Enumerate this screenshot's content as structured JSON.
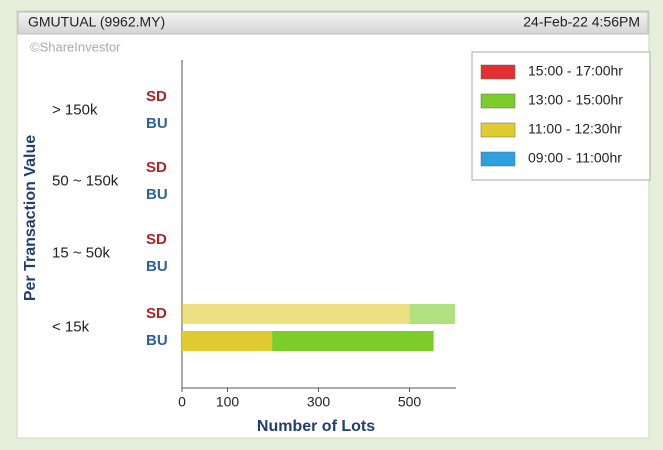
{
  "chart_data": {
    "type": "stacked_hbar",
    "header": {
      "title": "GMUTUAL (9962.MY)",
      "timestamp": "24-Feb-22 4:56PM"
    },
    "watermark": "©ShareInvestor",
    "ylabel": "Per Transaction Value",
    "xlabel": "Number of Lots",
    "categories": [
      "> 150k",
      "50 ~ 150k",
      "15 ~ 50k",
      "< 15k"
    ],
    "subcategories": [
      "SD",
      "BU"
    ],
    "subcategory_colors": [
      "#b22222",
      "#2e5f9e"
    ],
    "series": [
      {
        "name": "15:00 - 17:00hr",
        "color": "#e03030",
        "values": [
          [
            0,
            0
          ],
          [
            0,
            0
          ],
          [
            0,
            0
          ],
          [
            0,
            0
          ]
        ]
      },
      {
        "name": "13:00 - 15:00hr",
        "color": "#7ccc2a",
        "values": [
          [
            0,
            0
          ],
          [
            0,
            0
          ],
          [
            0,
            0
          ],
          [
            100,
            355
          ]
        ]
      },
      {
        "name": "11:00 - 12:30hr",
        "color": "#e0cc30",
        "values": [
          [
            0,
            0
          ],
          [
            0,
            0
          ],
          [
            0,
            0
          ],
          [
            500,
            198
          ]
        ]
      },
      {
        "name": "09:00 - 11:00hr",
        "color": "#2ea0e0",
        "values": [
          [
            0,
            0
          ],
          [
            0,
            0
          ],
          [
            0,
            0
          ],
          [
            0,
            0
          ]
        ]
      }
    ],
    "xlim": [
      0,
      600
    ],
    "xticks": [
      0,
      100,
      300,
      500
    ],
    "legend": "top-right"
  }
}
